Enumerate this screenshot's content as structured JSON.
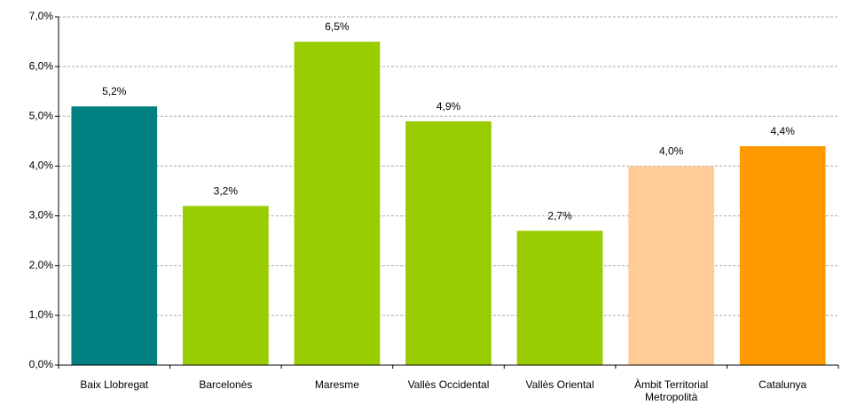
{
  "chart_data": {
    "type": "bar",
    "categories": [
      "Baix Llobregat",
      "Barcelonès",
      "Maresme",
      "Vallès Occidental",
      "Vallès Oriental",
      "Àmbit Territorial Metropolità",
      "Catalunya"
    ],
    "values": [
      5.2,
      3.2,
      6.5,
      4.9,
      2.7,
      4.0,
      4.4
    ],
    "value_labels": [
      "5,2%",
      "3,2%",
      "6,5%",
      "4,9%",
      "2,7%",
      "4,0%",
      "4,4%"
    ],
    "colors": [
      "#008080",
      "#99cc00",
      "#99cc00",
      "#99cc00",
      "#99cc00",
      "#ffcc99",
      "#ff9900"
    ],
    "ylim": [
      0,
      7
    ],
    "yticks": [
      {
        "value": 0,
        "label": "0,0%"
      },
      {
        "value": 1,
        "label": "1,0%"
      },
      {
        "value": 2,
        "label": "2,0%"
      },
      {
        "value": 3,
        "label": "3,0%"
      },
      {
        "value": 4,
        "label": "4,0%"
      },
      {
        "value": 5,
        "label": "5,0%"
      },
      {
        "value": 6,
        "label": "6,0%"
      },
      {
        "value": 7,
        "label": "7,0%"
      }
    ],
    "grid": true
  }
}
